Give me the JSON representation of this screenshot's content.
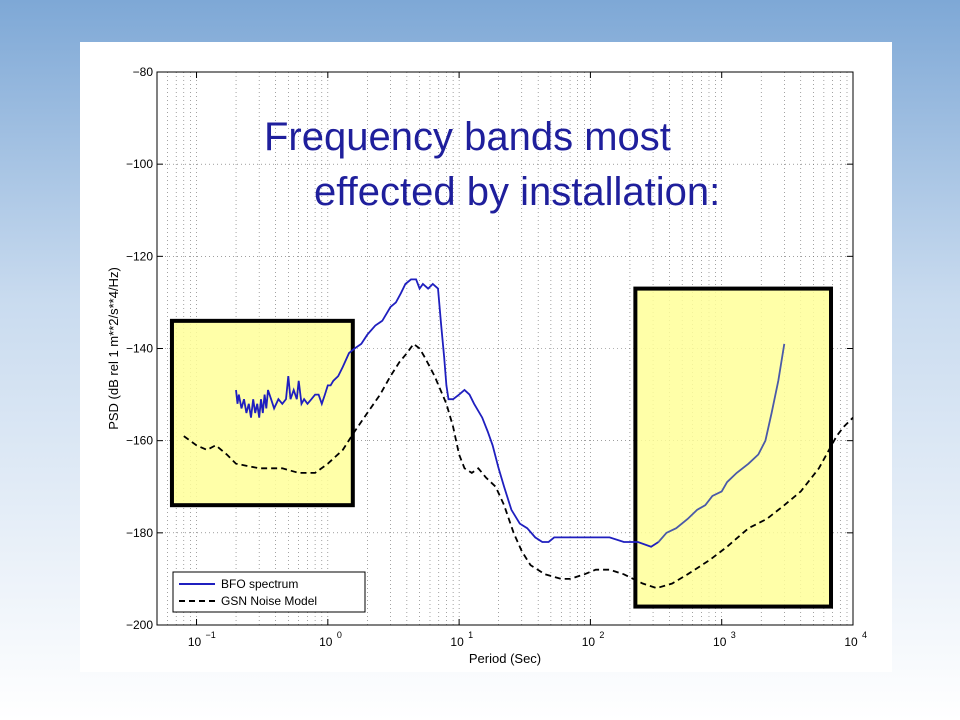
{
  "slide": {
    "title_line1": "Frequency bands most",
    "title_line2": "effected by installation:"
  },
  "chart_data": {
    "type": "line",
    "xlabel": "Period (Sec)",
    "ylabel": "PSD (dB rel 1 m**2/s**4/Hz)",
    "x_scale": "log",
    "xlim": [
      0.05,
      10000
    ],
    "ylim": [
      -200,
      -80
    ],
    "x_ticks": [
      {
        "value": 0.1,
        "base": "10",
        "exp": "−1"
      },
      {
        "value": 1,
        "base": "10",
        "exp": "0"
      },
      {
        "value": 10,
        "base": "10",
        "exp": "1"
      },
      {
        "value": 100,
        "base": "10",
        "exp": "2"
      },
      {
        "value": 1000,
        "base": "10",
        "exp": "3"
      },
      {
        "value": 10000,
        "base": "10",
        "exp": "4"
      }
    ],
    "y_ticks": [
      {
        "value": -80,
        "label": "−80"
      },
      {
        "value": -100,
        "label": "−100"
      },
      {
        "value": -120,
        "label": "−120"
      },
      {
        "value": -140,
        "label": "−140"
      },
      {
        "value": -160,
        "label": "−160"
      },
      {
        "value": -180,
        "label": "−180"
      },
      {
        "value": -200,
        "label": "−200"
      }
    ],
    "grid": true,
    "legend_position": "bottom-left",
    "colors": {
      "bfo": "#1f1fbf",
      "bfo_in_box": "#4a5aa8",
      "gsn": "#000000",
      "box_fill": "#ffff99",
      "box_border": "#000000",
      "title": "#1f1f9c"
    },
    "series": [
      {
        "name": "BFO spectrum",
        "style": "solid",
        "segments": [
          [
            [
              0.2,
              -149
            ],
            [
              0.205,
              -152
            ],
            [
              0.21,
              -150
            ],
            [
              0.22,
              -153
            ],
            [
              0.23,
              -151
            ],
            [
              0.24,
              -154
            ],
            [
              0.25,
              -152
            ],
            [
              0.26,
              -155
            ],
            [
              0.27,
              -151
            ],
            [
              0.28,
              -154
            ],
            [
              0.29,
              -152
            ],
            [
              0.3,
              -155
            ],
            [
              0.31,
              -151
            ],
            [
              0.32,
              -154
            ],
            [
              0.33,
              -150
            ],
            [
              0.34,
              -153
            ],
            [
              0.35,
              -149
            ],
            [
              0.37,
              -151
            ],
            [
              0.39,
              -153
            ],
            [
              0.42,
              -151
            ],
            [
              0.45,
              -152
            ],
            [
              0.48,
              -151
            ],
            [
              0.5,
              -146
            ],
            [
              0.52,
              -151
            ],
            [
              0.55,
              -149
            ],
            [
              0.58,
              -151
            ],
            [
              0.6,
              -147
            ],
            [
              0.63,
              -152
            ],
            [
              0.66,
              -151
            ],
            [
              0.7,
              -152
            ],
            [
              0.75,
              -151
            ],
            [
              0.8,
              -150
            ],
            [
              0.85,
              -150
            ],
            [
              0.9,
              -152
            ],
            [
              0.95,
              -150
            ],
            [
              1.0,
              -148
            ],
            [
              1.05,
              -148
            ],
            [
              1.1,
              -147
            ],
            [
              1.2,
              -146
            ],
            [
              1.3,
              -144
            ],
            [
              1.45,
              -141
            ],
            [
              1.6,
              -140
            ],
            [
              1.8,
              -139
            ],
            [
              2.0,
              -137
            ],
            [
              2.3,
              -135
            ],
            [
              2.6,
              -134
            ],
            [
              3.0,
              -131
            ],
            [
              3.3,
              -130
            ],
            [
              3.6,
              -128
            ],
            [
              3.9,
              -126
            ],
            [
              4.3,
              -125
            ],
            [
              4.7,
              -125
            ],
            [
              5.0,
              -127
            ],
            [
              5.3,
              -126
            ],
            [
              5.8,
              -127
            ],
            [
              6.3,
              -126
            ],
            [
              6.9,
              -127
            ],
            [
              7.3,
              -135
            ],
            [
              7.7,
              -142
            ],
            [
              8.0,
              -148
            ],
            [
              8.3,
              -151
            ],
            [
              9.0,
              -151
            ],
            [
              10.0,
              -150
            ],
            [
              11.0,
              -149
            ],
            [
              12.0,
              -150
            ],
            [
              13.0,
              -152
            ],
            [
              15.0,
              -155
            ],
            [
              16.5,
              -158
            ],
            [
              18.0,
              -161
            ],
            [
              20.0,
              -166
            ],
            [
              22.0,
              -170
            ],
            [
              25.0,
              -175
            ],
            [
              29.0,
              -178
            ],
            [
              33.0,
              -179
            ],
            [
              38.0,
              -181
            ],
            [
              43.0,
              -182
            ],
            [
              48.0,
              -182
            ],
            [
              53.0,
              -181
            ],
            [
              58.0,
              -181
            ],
            [
              65.0,
              -181
            ],
            [
              75.0,
              -181
            ],
            [
              90.0,
              -181
            ],
            [
              110.0,
              -181
            ],
            [
              140.0,
              -181
            ],
            [
              180.0,
              -182
            ],
            [
              230.0,
              -182
            ],
            [
              290.0,
              -183
            ],
            [
              330.0,
              -182
            ]
          ],
          [
            [
              330.0,
              -182
            ],
            [
              380.0,
              -180
            ],
            [
              450.0,
              -179
            ],
            [
              550.0,
              -177
            ],
            [
              650.0,
              -175
            ],
            [
              750.0,
              -174
            ],
            [
              850.0,
              -172
            ],
            [
              1000.0,
              -171
            ],
            [
              1100.0,
              -169
            ],
            [
              1300.0,
              -167
            ],
            [
              1600.0,
              -165
            ],
            [
              1900.0,
              -163
            ],
            [
              2150.0,
              -160
            ],
            [
              2400.0,
              -154
            ],
            [
              2700.0,
              -147
            ],
            [
              3000.0,
              -139
            ]
          ]
        ]
      },
      {
        "name": "GSN Noise Model",
        "style": "dashed",
        "points": [
          [
            0.08,
            -159
          ],
          [
            0.1,
            -161
          ],
          [
            0.12,
            -162
          ],
          [
            0.14,
            -161
          ],
          [
            0.17,
            -163
          ],
          [
            0.2,
            -165
          ],
          [
            0.3,
            -166
          ],
          [
            0.45,
            -166
          ],
          [
            0.6,
            -167
          ],
          [
            0.8,
            -167
          ],
          [
            1.0,
            -165
          ],
          [
            1.3,
            -162
          ],
          [
            1.6,
            -158
          ],
          [
            2.0,
            -154
          ],
          [
            2.5,
            -150
          ],
          [
            3.0,
            -146
          ],
          [
            3.5,
            -143
          ],
          [
            4.0,
            -141
          ],
          [
            4.5,
            -139
          ],
          [
            5.0,
            -140
          ],
          [
            5.5,
            -142
          ],
          [
            6.5,
            -146
          ],
          [
            8.0,
            -152
          ],
          [
            9.0,
            -157
          ],
          [
            10.0,
            -163
          ],
          [
            11.0,
            -166
          ],
          [
            12.5,
            -167
          ],
          [
            14.0,
            -166
          ],
          [
            16.0,
            -168
          ],
          [
            19.0,
            -170
          ],
          [
            22.0,
            -174
          ],
          [
            26.0,
            -180
          ],
          [
            30.0,
            -184
          ],
          [
            35.0,
            -187
          ],
          [
            45.0,
            -189
          ],
          [
            60.0,
            -190
          ],
          [
            70.0,
            -190
          ],
          [
            90.0,
            -189
          ],
          [
            110.0,
            -188
          ],
          [
            140.0,
            -188
          ],
          [
            180.0,
            -189
          ],
          [
            250.0,
            -191
          ],
          [
            320.0,
            -192
          ],
          [
            420.0,
            -191
          ],
          [
            550.0,
            -189
          ],
          [
            800.0,
            -186
          ],
          [
            1100.0,
            -183
          ],
          [
            1600.0,
            -179
          ],
          [
            2200.0,
            -177
          ],
          [
            3000.0,
            -174
          ],
          [
            4000.0,
            -171
          ],
          [
            5500.0,
            -166
          ],
          [
            7500.0,
            -159
          ],
          [
            8500.0,
            -157
          ],
          [
            10000.0,
            -155
          ]
        ]
      }
    ],
    "highlight_boxes": [
      {
        "x": [
          0.065,
          1.55
        ],
        "y": [
          -174,
          -134
        ]
      },
      {
        "x": [
          220,
          6800
        ],
        "y": [
          -196,
          -127
        ]
      }
    ]
  }
}
